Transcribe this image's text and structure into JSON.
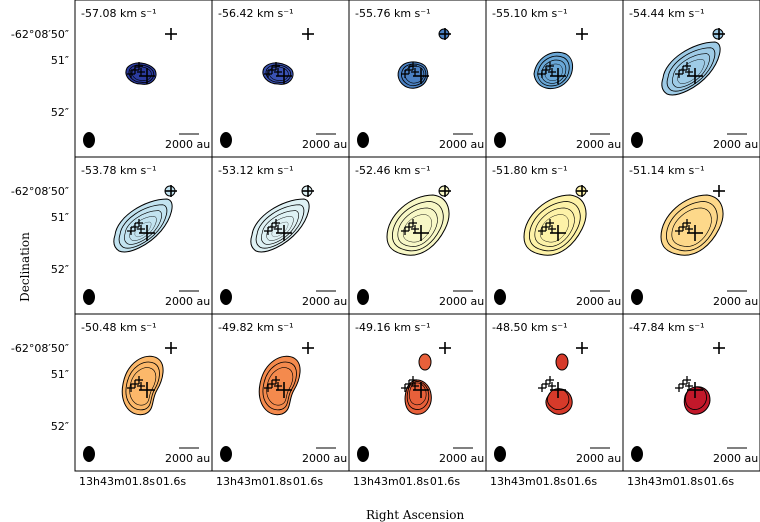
{
  "figure": {
    "xlabel": "Right Ascension",
    "ylabel": "Declination",
    "y_tick_labels": [
      "-62°08′50″",
      "51″",
      "52″"
    ],
    "x_tick_labels": [
      "13h43m01.8s",
      "01.6s"
    ],
    "scalebar_label": "2000 au",
    "velocity_unit": "km s⁻¹"
  },
  "channels": [
    {
      "velocity": "-57.08",
      "color": "#2b3b9f",
      "levels": 3,
      "blob": "compact"
    },
    {
      "velocity": "-56.42",
      "color": "#3a52b3",
      "levels": 3,
      "blob": "compact"
    },
    {
      "velocity": "-55.76",
      "color": "#4a80c2",
      "levels": 3,
      "blob": "compact-ne"
    },
    {
      "velocity": "-55.10",
      "color": "#6aa7d6",
      "levels": 4,
      "blob": "medium"
    },
    {
      "velocity": "-54.44",
      "color": "#9ecbe6",
      "levels": 4,
      "blob": "elongated"
    },
    {
      "velocity": "-53.78",
      "color": "#c2e3f0",
      "levels": 5,
      "blob": "elongated"
    },
    {
      "velocity": "-53.12",
      "color": "#def1f4",
      "levels": 5,
      "blob": "elongated"
    },
    {
      "velocity": "-52.46",
      "color": "#f7f7c6",
      "levels": 4,
      "blob": "wide"
    },
    {
      "velocity": "-51.80",
      "color": "#fdf2a8",
      "levels": 4,
      "blob": "wide"
    },
    {
      "velocity": "-51.14",
      "color": "#fdd88a",
      "levels": 3,
      "blob": "wide"
    },
    {
      "velocity": "-50.48",
      "color": "#fcb86a",
      "levels": 3,
      "blob": "tall"
    },
    {
      "velocity": "-49.82",
      "color": "#f48a4d",
      "levels": 3,
      "blob": "tall"
    },
    {
      "velocity": "-49.16",
      "color": "#e8603a",
      "levels": 3,
      "blob": "split"
    },
    {
      "velocity": "-48.50",
      "color": "#d63a2a",
      "levels": 2,
      "blob": "small-split"
    },
    {
      "velocity": "-47.84",
      "color": "#c2182a",
      "levels": 2,
      "blob": "small"
    }
  ]
}
